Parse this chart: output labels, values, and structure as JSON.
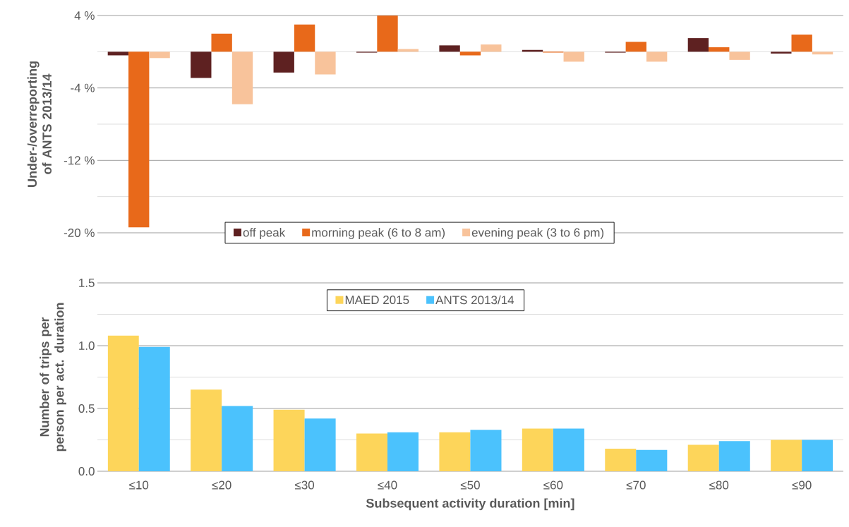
{
  "chart_data": [
    {
      "type": "bar",
      "ylabel": "Under-/overreporting of ANTS 2013/14",
      "categories": [
        null,
        null,
        null,
        null,
        null,
        null,
        null,
        null,
        null
      ],
      "tick_labels": "y",
      "ylim": [
        -20,
        4
      ],
      "yticks": [
        {
          "value": 4,
          "label": "4 %"
        },
        {
          "value": 0,
          "label": null
        },
        {
          "value": -4,
          "label": "-4 %"
        },
        {
          "value": -8,
          "label": null
        },
        {
          "value": -12,
          "label": "-12 %"
        },
        {
          "value": -16,
          "label": null
        },
        {
          "value": -20,
          "label": "-20 %"
        }
      ],
      "grid": "y",
      "legend": "bottom",
      "series": [
        {
          "name": "off peak",
          "color": "#5e2121",
          "values": [
            -0.4,
            -2.9,
            -2.3,
            -0.1,
            0.7,
            0.2,
            -0.1,
            1.5,
            -0.2
          ]
        },
        {
          "name": "morning peak (6 to 8 am)",
          "color": "#e8691a",
          "values": [
            -19.4,
            2.0,
            3.0,
            4.0,
            -0.4,
            -0.1,
            1.1,
            0.5,
            1.9
          ]
        },
        {
          "name": "evening peak (3 to 6 pm)",
          "color": "#f8c39b",
          "values": [
            -0.7,
            -5.8,
            -2.5,
            0.3,
            0.8,
            -1.1,
            -1.1,
            -0.9,
            -0.3
          ]
        }
      ]
    },
    {
      "type": "bar",
      "xlabel": "Subsequent activity duration [min]",
      "ylabel": "Number of trips per person per act. duration",
      "categories": [
        "≤10",
        "≤20",
        "≤30",
        "≤40",
        "≤50",
        "≤60",
        "≤70",
        "≤80",
        "≤90"
      ],
      "ylim": [
        0,
        1.5
      ],
      "yticks": [
        {
          "value": 0,
          "label": "0.0"
        },
        {
          "value": 0.25,
          "label": null
        },
        {
          "value": 0.5,
          "label": "0.5"
        },
        {
          "value": 0.75,
          "label": null
        },
        {
          "value": 1.0,
          "label": "1.0"
        },
        {
          "value": 1.25,
          "label": null
        },
        {
          "value": 1.5,
          "label": "1.5"
        }
      ],
      "grid": "y",
      "legend": "top",
      "series": [
        {
          "name": "MAED 2015",
          "color": "#fdd55a",
          "values": [
            1.08,
            0.65,
            0.49,
            0.3,
            0.31,
            0.34,
            0.18,
            0.21,
            0.25
          ]
        },
        {
          "name": "ANTS 2013/14",
          "color": "#4bc2fd",
          "values": [
            0.99,
            0.52,
            0.42,
            0.31,
            0.33,
            0.34,
            0.17,
            0.24,
            0.25
          ]
        }
      ]
    }
  ]
}
